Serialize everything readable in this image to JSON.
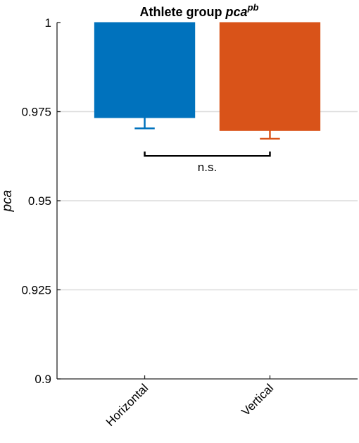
{
  "chart_data": {
    "type": "bar",
    "title": {
      "main": "Athlete group ",
      "italic": "pca",
      "superscript": "pb"
    },
    "xlabel": "",
    "ylabel": "pca",
    "categories": [
      "Horizontal",
      "Vertical"
    ],
    "values": [
      0.9733,
      0.9697
    ],
    "error_lower": [
      0.9703,
      0.9674
    ],
    "bar_colors": [
      "#0072BD",
      "#D95319"
    ],
    "ylim": [
      0.9,
      1.0
    ],
    "yticks": [
      0.9,
      0.925,
      0.95,
      0.975,
      1.0
    ],
    "ytick_labels": [
      "0.9",
      "0.925",
      "0.95",
      "0.975",
      "1"
    ],
    "grid": true,
    "grid_color": "#dcdcdc",
    "significance": {
      "between": [
        "Horizontal",
        "Vertical"
      ],
      "y": 0.9626,
      "label": "n.s."
    }
  }
}
